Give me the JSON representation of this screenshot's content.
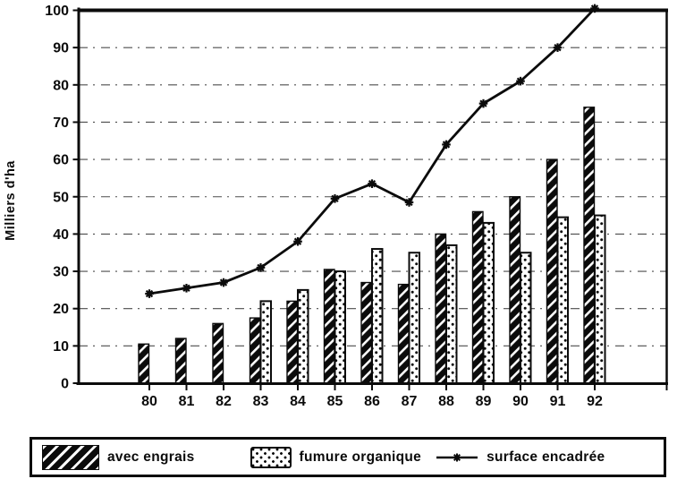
{
  "chart": {
    "y_axis_title": "Milliers d'ha"
  },
  "chart_data": {
    "type": "bar+line",
    "title": "",
    "xlabel": "",
    "ylabel": "Milliers d'ha",
    "categories": [
      "80",
      "81",
      "82",
      "83",
      "84",
      "85",
      "86",
      "87",
      "88",
      "89",
      "90",
      "91",
      "92"
    ],
    "series": [
      {
        "name": "avec engrais",
        "type": "bar",
        "style": "hatch",
        "values": [
          10.5,
          12,
          16,
          17.5,
          22,
          30.5,
          27,
          26.5,
          40,
          46,
          50,
          60,
          74
        ]
      },
      {
        "name": "fumure organique",
        "type": "bar",
        "style": "dots",
        "values": [
          null,
          null,
          null,
          22,
          25,
          30,
          36,
          35,
          37,
          43,
          35,
          44.5,
          45
        ]
      },
      {
        "name": "surface encadrée",
        "type": "line",
        "marker": "asterisk",
        "values": [
          24,
          25.5,
          27,
          31,
          38,
          49.5,
          53.5,
          48.5,
          64,
          75,
          81,
          90,
          100.5
        ]
      }
    ],
    "ylim": [
      0,
      100
    ],
    "ytick_step": 10,
    "ytick_labels": [
      "0",
      "10",
      "20",
      "30",
      "40",
      "50",
      "60",
      "70",
      "80",
      "90",
      "100"
    ],
    "grid": "horizontal-dashed",
    "legend_position": "bottom",
    "colors": {
      "ink": "#0b0b0b",
      "background": "#ffffff"
    }
  }
}
